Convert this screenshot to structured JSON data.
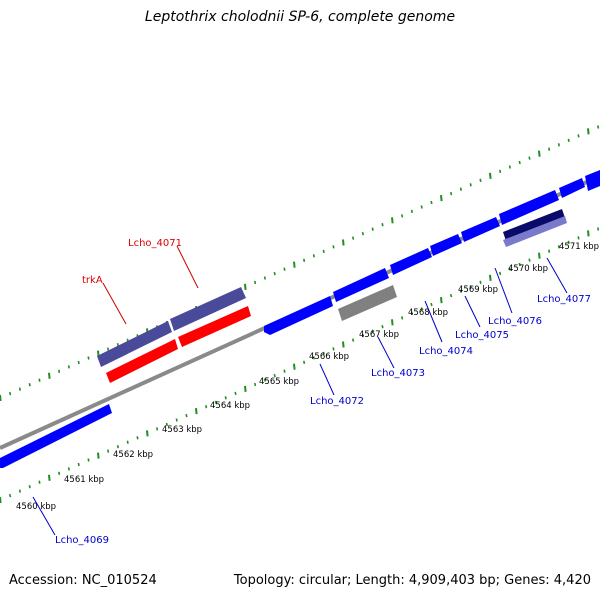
{
  "title": "Leptothrix cholodnii SP-6, complete genome",
  "footer": {
    "accession": "Accession: NC_010524",
    "summary": "Topology: circular; Length: 4,909,403 bp; Genes: 4,420"
  },
  "colors": {
    "backbone": "#888888",
    "tick_major": "#1a8a1a",
    "tick_dotted": "#2a9a2a",
    "forward_cds": "#0000ff",
    "reverse_cds_red": "#ff0000",
    "highlight_purple": "#4a4a9a",
    "pseudo_gray": "#808080",
    "navy": "#0a0a6a",
    "light_purple": "#7a7acc",
    "label_blue": "#0000cc",
    "label_red": "#dd0000"
  },
  "scale_labels": [
    "4560 kbp",
    "4561 kbp",
    "4562 kbp",
    "4563 kbp",
    "4564 kbp",
    "4565 kbp",
    "4566 kbp",
    "4567 kbp",
    "4568 kbp",
    "4569 kbp",
    "4570 kbp",
    "4571 kbp"
  ],
  "gene_labels": [
    {
      "name": "Lcho_4069",
      "color": "blue"
    },
    {
      "name": "trkA",
      "color": "red"
    },
    {
      "name": "Lcho_4071",
      "color": "red"
    },
    {
      "name": "Lcho_4072",
      "color": "blue"
    },
    {
      "name": "Lcho_4073",
      "color": "blue"
    },
    {
      "name": "Lcho_4074",
      "color": "blue"
    },
    {
      "name": "Lcho_4075",
      "color": "blue"
    },
    {
      "name": "Lcho_4076",
      "color": "blue"
    },
    {
      "name": "Lcho_4077",
      "color": "blue"
    }
  ]
}
